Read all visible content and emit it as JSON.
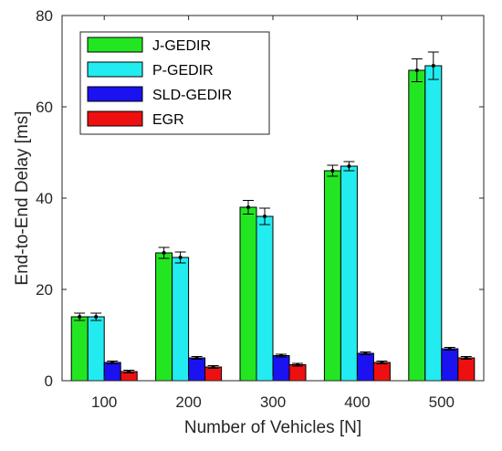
{
  "chart_data": {
    "type": "bar",
    "title": "",
    "xlabel": "Number of Vehicles [N]",
    "ylabel": "End-to-End Delay [ms]",
    "categories": [
      "100",
      "200",
      "300",
      "400",
      "500"
    ],
    "ylim": [
      0,
      80
    ],
    "yticks": [
      "0",
      "20",
      "40",
      "60",
      "80"
    ],
    "grid": false,
    "legend_position": "top-left",
    "error_bars": true,
    "series": [
      {
        "name": "J-GEDIR",
        "color": "#22e622",
        "values": [
          14,
          28,
          38,
          46,
          68
        ],
        "errors": [
          0.8,
          1.2,
          1.5,
          1.2,
          2.5
        ]
      },
      {
        "name": "P-GEDIR",
        "color": "#22ecf0",
        "values": [
          14,
          27,
          36,
          47,
          69
        ],
        "errors": [
          0.8,
          1.2,
          1.8,
          1.0,
          3.0
        ]
      },
      {
        "name": "SLD-GEDIR",
        "color": "#1a12f0",
        "values": [
          4,
          5,
          5.5,
          6,
          7
        ],
        "errors": [
          0.3,
          0.3,
          0.3,
          0.3,
          0.3
        ]
      },
      {
        "name": "EGR",
        "color": "#ee1010",
        "values": [
          2,
          3,
          3.5,
          4,
          5
        ],
        "errors": [
          0.3,
          0.3,
          0.3,
          0.3,
          0.3
        ]
      }
    ]
  }
}
